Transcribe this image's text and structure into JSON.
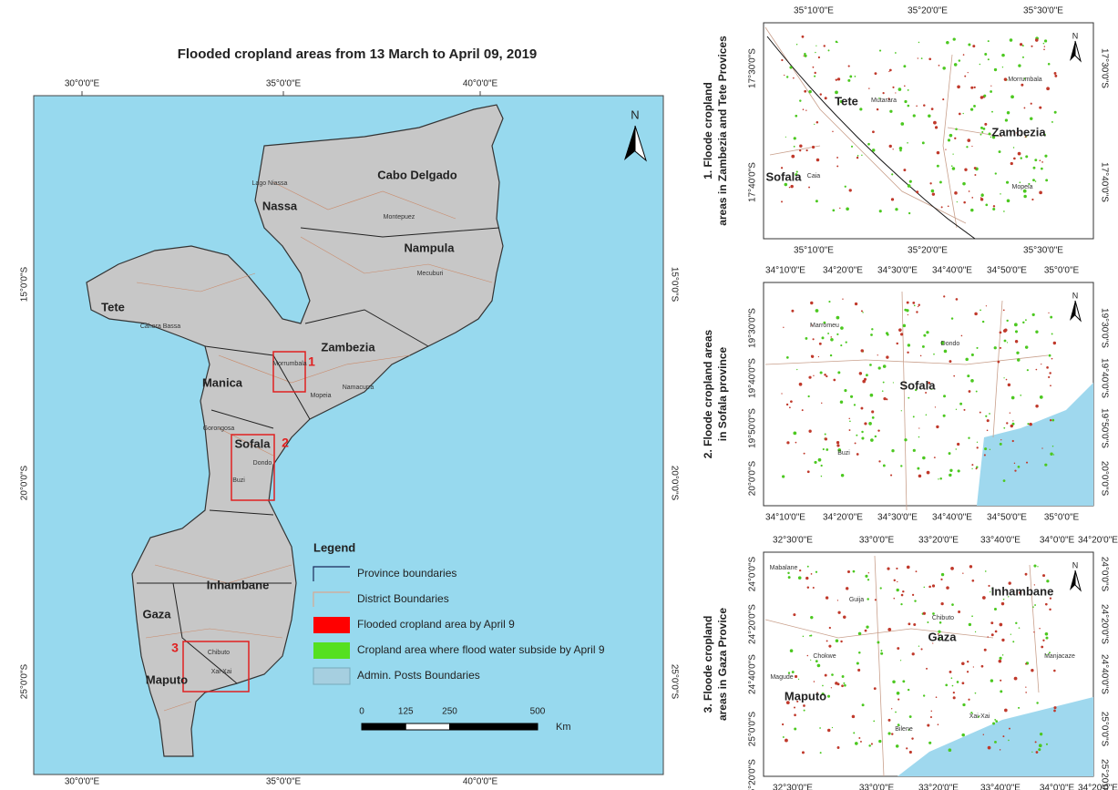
{
  "title": "Flooded cropland areas from 13 March to April 09, 2019",
  "main_map": {
    "top_ticks": [
      "30°0'0\"E",
      "35°0'0\"E",
      "40°0'0\"E"
    ],
    "bottom_ticks": [
      "30°0'0\"E",
      "35°0'0\"E",
      "40°0'0\"E"
    ],
    "left_ticks": [
      "15°0'0\"S",
      "20°0'0\"S",
      "25°0'0\"S"
    ],
    "right_ticks": [
      "15°0'0\"S",
      "20°0'0\"S",
      "25°0'0\"S"
    ],
    "north": "N",
    "inset_numbers": [
      "1",
      "2",
      "3"
    ],
    "provinces": [
      "Cabo Delgado",
      "Nassa",
      "Nampula",
      "Tete",
      "Zambezia",
      "Manica",
      "Sofala",
      "Inhambane",
      "Gaza",
      "Maputo"
    ],
    "districts": [
      "Lago Niassa",
      "Cahora Bassa",
      "Morrumbala",
      "Mopeia",
      "Dondo",
      "Buzi",
      "Chibuto",
      "Xai-Xai",
      "Montepuez",
      "Mecuburi",
      "Namacurra",
      "Gorongosa"
    ]
  },
  "legend": {
    "title": "Legend",
    "items": [
      "Province boundaries",
      "District Boundaries",
      "Flooded cropland area by April 9",
      "Cropland area where flood water subside by April 9",
      "Admin. Posts Boundaries"
    ]
  },
  "scale": {
    "values": [
      0,
      125,
      250,
      500
    ],
    "unit": "Km"
  },
  "insets": [
    {
      "caption": [
        "1. Floode cropland",
        "areas in Zambezia and Tete Provices"
      ],
      "north": "N",
      "top_ticks": [
        "35°10'0\"E",
        "35°20'0\"E",
        "35°30'0\"E"
      ],
      "bottom_ticks": [
        "35°10'0\"E",
        "35°20'0\"E",
        "35°30'0\"E"
      ],
      "left_ticks": [
        "17°30'0\"S",
        "17°40'0\"S"
      ],
      "right_ticks": [
        "17°30'0\"S",
        "17°40'0\"S"
      ],
      "provinces": [
        "Tete",
        "Zambezia",
        "Sofala"
      ],
      "districts": [
        "Mutarara",
        "Morrumbala",
        "Mopeia",
        "Caia"
      ]
    },
    {
      "caption": [
        "2. Floode cropland areas",
        "in Sofala province"
      ],
      "north": "N",
      "top_ticks": [
        "34°10'0\"E",
        "34°20'0\"E",
        "34°30'0\"E",
        "34°40'0\"E",
        "34°50'0\"E",
        "35°0'0\"E"
      ],
      "bottom_ticks": [
        "34°10'0\"E",
        "34°20'0\"E",
        "34°30'0\"E",
        "34°40'0\"E",
        "34°50'0\"E",
        "35°0'0\"E"
      ],
      "left_ticks": [
        "19°30'0\"S",
        "19°40'0\"S",
        "19°50'0\"S",
        "20°0'0\"S"
      ],
      "right_ticks": [
        "19°30'0\"S",
        "19°40'0\"S",
        "19°50'0\"S",
        "20°0'0\"S"
      ],
      "provinces": [
        "Sofala"
      ],
      "districts": [
        "Marromeu",
        "Dondo",
        "Buzi"
      ]
    },
    {
      "caption": [
        "3. Floode cropland",
        "areas in Gaza Provice"
      ],
      "north": "N",
      "top_ticks": [
        "32°30'0\"E",
        "33°0'0\"E",
        "33°20'0\"E",
        "33°40'0\"E",
        "34°0'0\"E",
        "34°20'0\"E"
      ],
      "bottom_ticks": [
        "32°30'0\"E",
        "33°0'0\"E",
        "33°20'0\"E",
        "33°40'0\"E",
        "34°0'0\"E",
        "34°20'0\"E"
      ],
      "left_ticks": [
        "24°0'0\"S",
        "24°20'0\"S",
        "24°40'0\"S",
        "25°0'0\"S",
        "25°20'0\"S"
      ],
      "right_ticks": [
        "24°0'0\"S",
        "24°20'0\"S",
        "24°40'0\"S",
        "25°0'0\"S",
        "25°20'0\"S"
      ],
      "provinces": [
        "Gaza",
        "Inhambane",
        "Maputo"
      ],
      "districts": [
        "Chibuto",
        "Guija",
        "Chokwe",
        "Xai-Xai",
        "Manjacaze",
        "Magude",
        "Bilene",
        "Mabalane"
      ]
    }
  ]
}
